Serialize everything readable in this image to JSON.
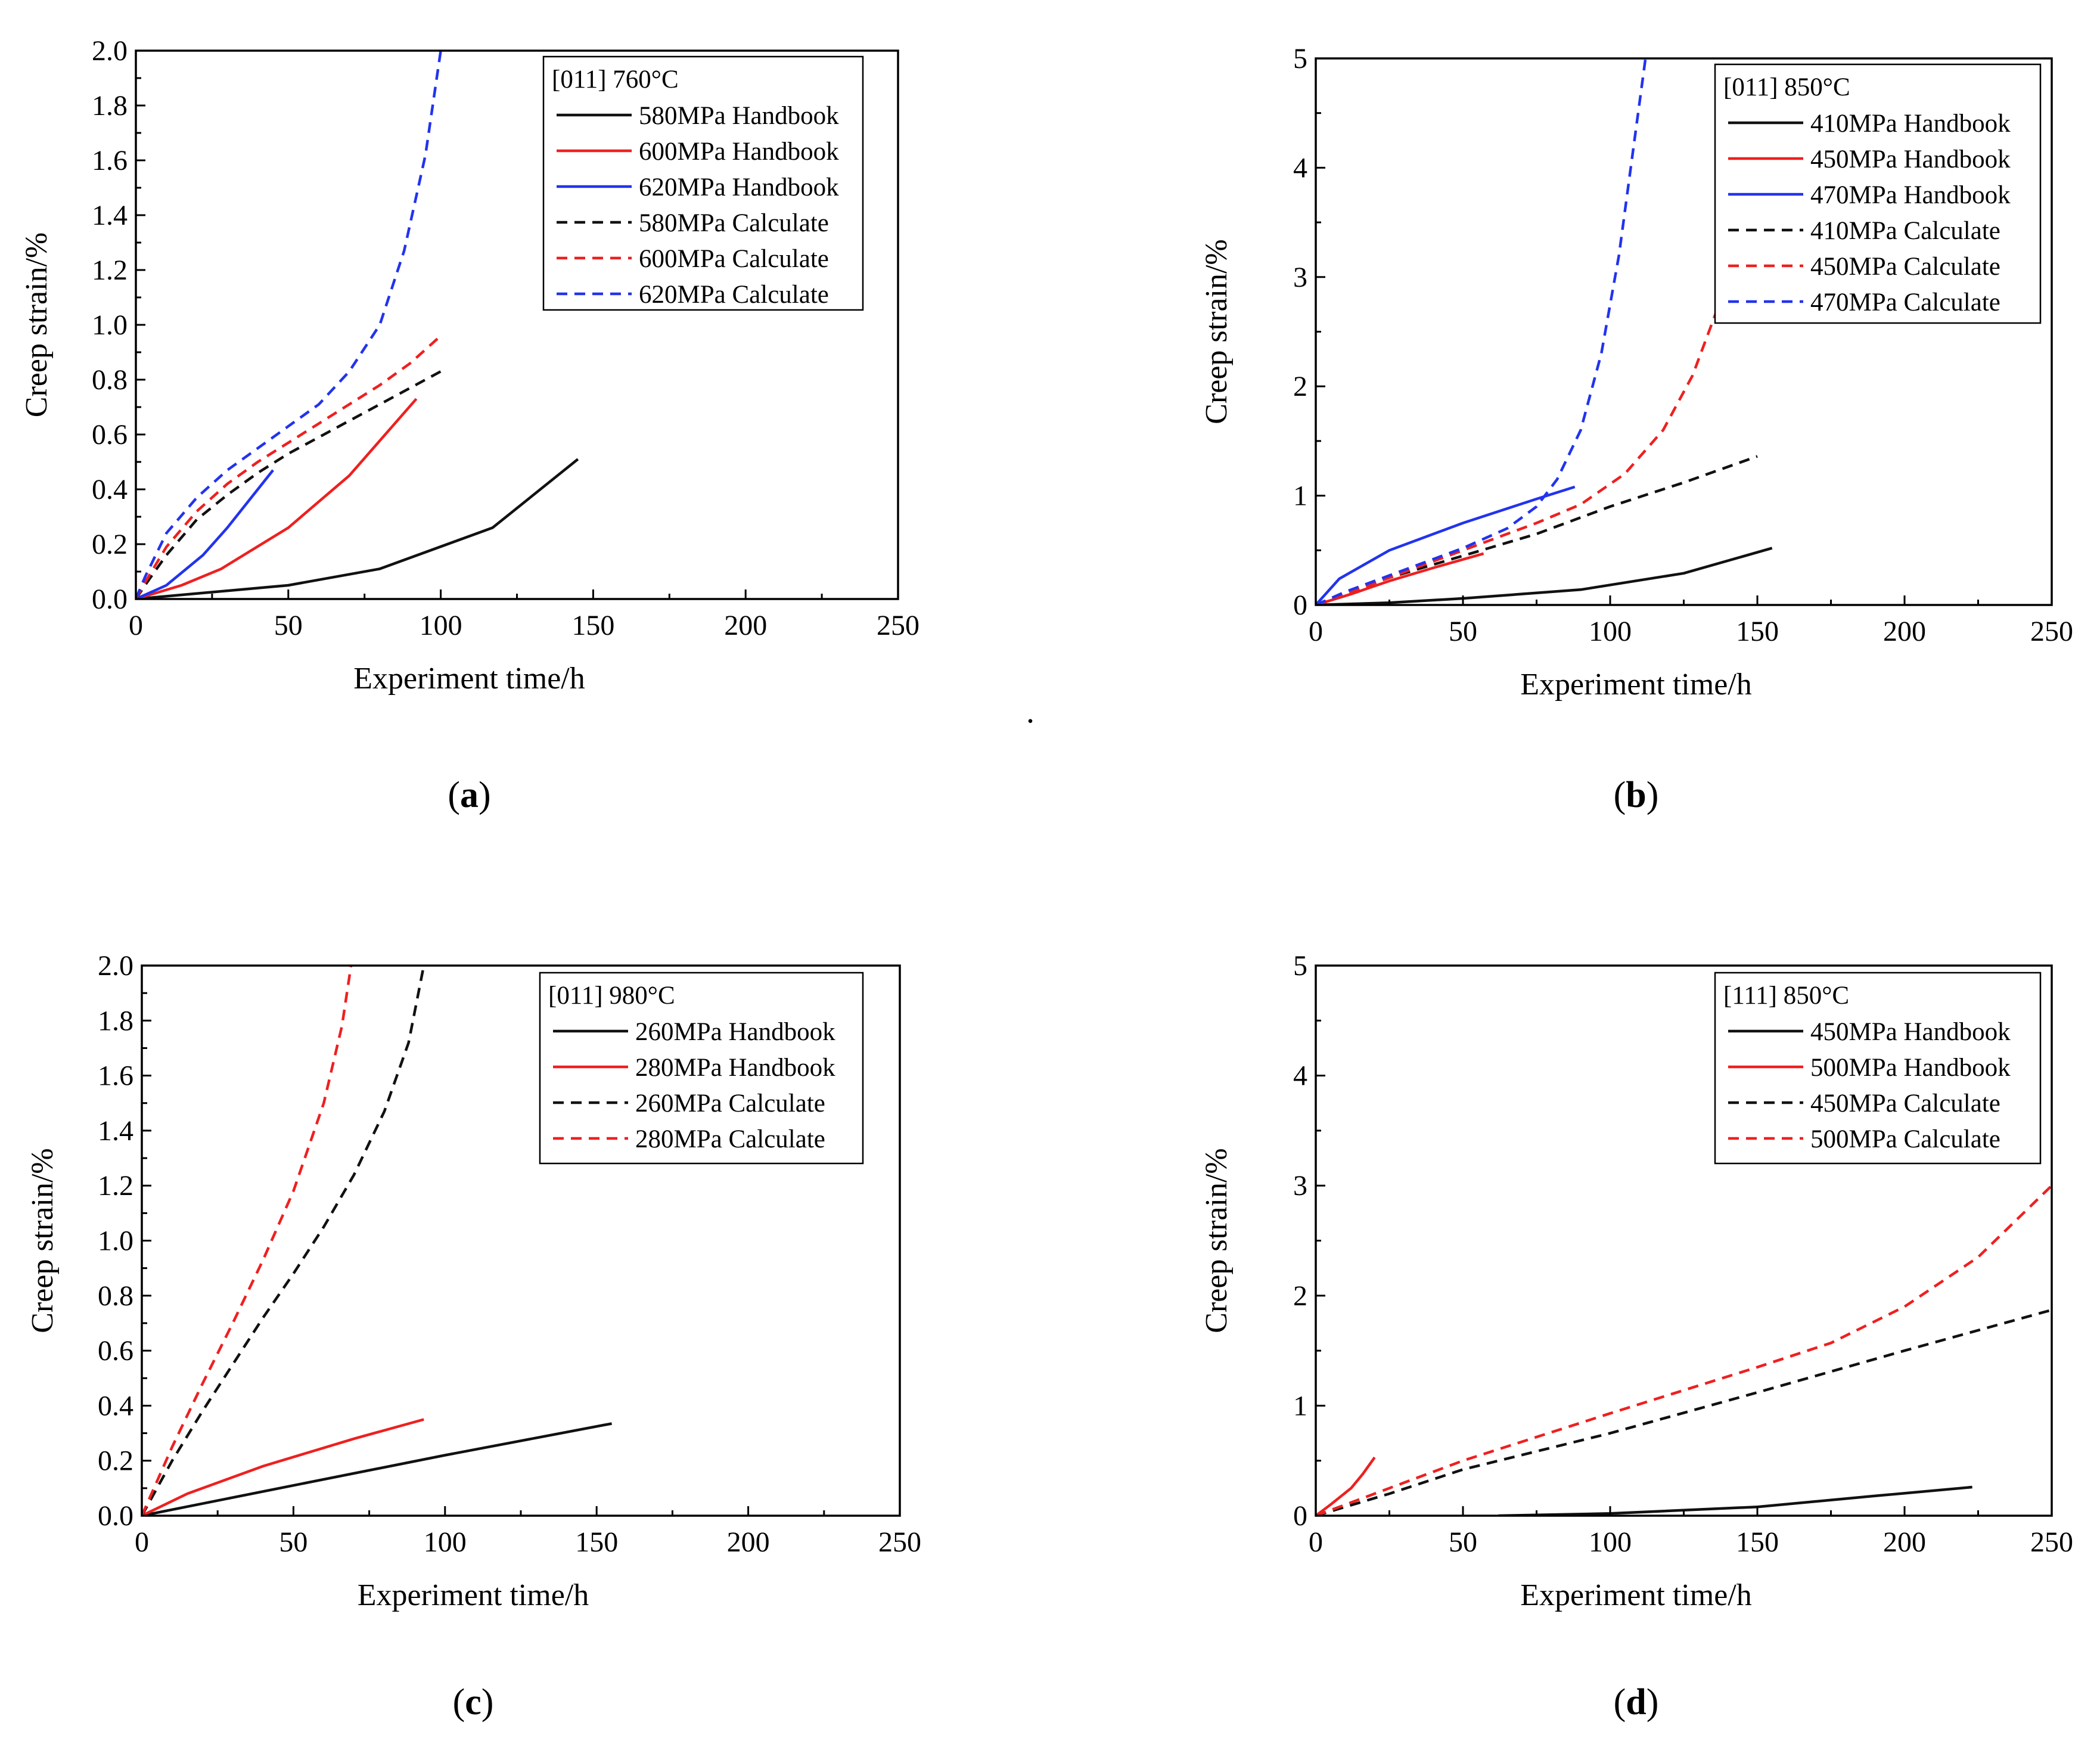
{
  "colors": {
    "black": "#111111",
    "red": "#ee2020",
    "blue": "#2233ee"
  },
  "stray_mark": ".",
  "chart_data": [
    {
      "type": "line",
      "caption": "a",
      "legend_title": "[011] 760°C",
      "xlabel": "Experiment time/h",
      "ylabel": "Creep strain/%",
      "xlim": [
        0,
        250
      ],
      "ylim": [
        0,
        2.0
      ],
      "xticks": [
        0,
        50,
        100,
        150,
        200,
        250
      ],
      "yticks": [
        0.0,
        0.2,
        0.4,
        0.6,
        0.8,
        1.0,
        1.2,
        1.4,
        1.6,
        1.8,
        2.0
      ],
      "ytick_labels": [
        "0.0",
        "0.2",
        "0.4",
        "0.6",
        "0.8",
        "1.0",
        "1.2",
        "1.4",
        "1.6",
        "1.8",
        "2.0"
      ],
      "series": [
        {
          "name": "580MPa Handbook",
          "color": "black",
          "dash": false,
          "points": [
            [
              0,
              0
            ],
            [
              20,
              0.02
            ],
            [
              50,
              0.05
            ],
            [
              80,
              0.11
            ],
            [
              117,
              0.26
            ],
            [
              145,
              0.51
            ]
          ]
        },
        {
          "name": "600MPa Handbook",
          "color": "red",
          "dash": false,
          "points": [
            [
              0,
              0
            ],
            [
              15,
              0.05
            ],
            [
              28,
              0.11
            ],
            [
              50,
              0.26
            ],
            [
              70,
              0.45
            ],
            [
              92,
              0.73
            ]
          ]
        },
        {
          "name": "620MPa Handbook",
          "color": "blue",
          "dash": false,
          "points": [
            [
              0,
              0
            ],
            [
              10,
              0.05
            ],
            [
              22,
              0.16
            ],
            [
              30,
              0.26
            ],
            [
              45,
              0.47
            ]
          ]
        },
        {
          "name": "580MPa Calculate",
          "color": "black",
          "dash": true,
          "points": [
            [
              0,
              0
            ],
            [
              3,
              0.05
            ],
            [
              10,
              0.16
            ],
            [
              20,
              0.29
            ],
            [
              30,
              0.38
            ],
            [
              40,
              0.46
            ],
            [
              50,
              0.53
            ],
            [
              60,
              0.59
            ],
            [
              70,
              0.65
            ],
            [
              80,
              0.71
            ],
            [
              90,
              0.77
            ],
            [
              100,
              0.83
            ]
          ]
        },
        {
          "name": "600MPa Calculate",
          "color": "red",
          "dash": true,
          "points": [
            [
              0,
              0
            ],
            [
              3,
              0.06
            ],
            [
              10,
              0.19
            ],
            [
              20,
              0.32
            ],
            [
              30,
              0.42
            ],
            [
              40,
              0.5
            ],
            [
              50,
              0.57
            ],
            [
              60,
              0.64
            ],
            [
              70,
              0.71
            ],
            [
              80,
              0.78
            ],
            [
              90,
              0.86
            ],
            [
              100,
              0.96
            ]
          ]
        },
        {
          "name": "620MPa Calculate",
          "color": "blue",
          "dash": true,
          "points": [
            [
              0,
              0
            ],
            [
              3,
              0.08
            ],
            [
              10,
              0.24
            ],
            [
              20,
              0.37
            ],
            [
              30,
              0.47
            ],
            [
              40,
              0.55
            ],
            [
              50,
              0.63
            ],
            [
              60,
              0.71
            ],
            [
              70,
              0.83
            ],
            [
              80,
              1.0
            ],
            [
              88,
              1.27
            ],
            [
              95,
              1.62
            ],
            [
              100,
              2.0
            ]
          ]
        }
      ]
    },
    {
      "type": "line",
      "caption": "b",
      "legend_title": "[011] 850°C",
      "xlabel": "Experiment time/h",
      "ylabel": "Creep strain/%",
      "xlim": [
        0,
        250
      ],
      "ylim": [
        0,
        5
      ],
      "xticks": [
        0,
        50,
        100,
        150,
        200,
        250
      ],
      "yticks": [
        0,
        1,
        2,
        3,
        4,
        5
      ],
      "ytick_labels": [
        "0",
        "1",
        "2",
        "3",
        "4",
        "5"
      ],
      "series": [
        {
          "name": "410MPa Handbook",
          "color": "black",
          "dash": false,
          "points": [
            [
              0,
              0
            ],
            [
              25,
              0.02
            ],
            [
              50,
              0.06
            ],
            [
              90,
              0.14
            ],
            [
              125,
              0.29
            ],
            [
              155,
              0.52
            ]
          ]
        },
        {
          "name": "450MPa Handbook",
          "color": "red",
          "dash": false,
          "points": [
            [
              0,
              0
            ],
            [
              12,
              0.1
            ],
            [
              25,
              0.22
            ],
            [
              40,
              0.34
            ],
            [
              57,
              0.47
            ]
          ]
        },
        {
          "name": "470MPa Handbook",
          "color": "blue",
          "dash": false,
          "points": [
            [
              0,
              0
            ],
            [
              8,
              0.24
            ],
            [
              25,
              0.5
            ],
            [
              50,
              0.75
            ],
            [
              75,
              0.97
            ],
            [
              88,
              1.08
            ]
          ]
        },
        {
          "name": "410MPa Calculate",
          "color": "black",
          "dash": true,
          "points": [
            [
              0,
              0
            ],
            [
              10,
              0.1
            ],
            [
              25,
              0.25
            ],
            [
              50,
              0.45
            ],
            [
              75,
              0.65
            ],
            [
              100,
              0.9
            ],
            [
              125,
              1.12
            ],
            [
              150,
              1.36
            ]
          ]
        },
        {
          "name": "450MPa Calculate",
          "color": "red",
          "dash": true,
          "points": [
            [
              0,
              0
            ],
            [
              10,
              0.1
            ],
            [
              25,
              0.25
            ],
            [
              50,
              0.5
            ],
            [
              75,
              0.75
            ],
            [
              90,
              0.92
            ],
            [
              105,
              1.2
            ],
            [
              118,
              1.6
            ],
            [
              128,
              2.1
            ],
            [
              137,
              2.75
            ]
          ]
        },
        {
          "name": "470MPa Calculate",
          "color": "blue",
          "dash": true,
          "points": [
            [
              0,
              0
            ],
            [
              10,
              0.12
            ],
            [
              25,
              0.27
            ],
            [
              50,
              0.52
            ],
            [
              65,
              0.7
            ],
            [
              75,
              0.9
            ],
            [
              82,
              1.15
            ],
            [
              90,
              1.6
            ],
            [
              97,
              2.3
            ],
            [
              103,
              3.2
            ],
            [
              108,
              4.2
            ],
            [
              112,
              5.0
            ]
          ]
        }
      ]
    },
    {
      "type": "line",
      "caption": "c",
      "legend_title": "[011] 980°C",
      "xlabel": "Experiment time/h",
      "ylabel": "Creep strain/%",
      "xlim": [
        0,
        250
      ],
      "ylim": [
        0,
        2.0
      ],
      "xticks": [
        0,
        50,
        100,
        150,
        200,
        250
      ],
      "yticks": [
        0.0,
        0.2,
        0.4,
        0.6,
        0.8,
        1.0,
        1.2,
        1.4,
        1.6,
        1.8,
        2.0
      ],
      "ytick_labels": [
        "0.0",
        "0.2",
        "0.4",
        "0.6",
        "0.8",
        "1.0",
        "1.2",
        "1.4",
        "1.6",
        "1.8",
        "2.0"
      ],
      "series": [
        {
          "name": "260MPa Handbook",
          "color": "black",
          "dash": false,
          "points": [
            [
              0,
              0
            ],
            [
              50,
              0.11
            ],
            [
              100,
              0.22
            ],
            [
              155,
              0.335
            ]
          ]
        },
        {
          "name": "280MPa Handbook",
          "color": "red",
          "dash": false,
          "points": [
            [
              0,
              0
            ],
            [
              15,
              0.08
            ],
            [
              40,
              0.18
            ],
            [
              70,
              0.28
            ],
            [
              93,
              0.35
            ]
          ]
        },
        {
          "name": "260MPa Calculate",
          "color": "black",
          "dash": true,
          "points": [
            [
              0,
              0
            ],
            [
              10,
              0.2
            ],
            [
              20,
              0.38
            ],
            [
              30,
              0.55
            ],
            [
              40,
              0.72
            ],
            [
              50,
              0.88
            ],
            [
              60,
              1.05
            ],
            [
              70,
              1.24
            ],
            [
              80,
              1.47
            ],
            [
              88,
              1.72
            ],
            [
              93,
              2.0
            ]
          ]
        },
        {
          "name": "280MPa Calculate",
          "color": "red",
          "dash": true,
          "points": [
            [
              0,
              0
            ],
            [
              10,
              0.25
            ],
            [
              20,
              0.48
            ],
            [
              30,
              0.7
            ],
            [
              40,
              0.93
            ],
            [
              50,
              1.18
            ],
            [
              60,
              1.5
            ],
            [
              66,
              1.78
            ],
            [
              69,
              2.0
            ]
          ]
        }
      ]
    },
    {
      "type": "line",
      "caption": "d",
      "legend_title": "[111] 850°C",
      "xlabel": "Experiment time/h",
      "ylabel": "Creep strain/%",
      "xlim": [
        0,
        250
      ],
      "ylim": [
        0,
        5
      ],
      "xticks": [
        0,
        50,
        100,
        150,
        200,
        250
      ],
      "yticks": [
        0,
        1,
        2,
        3,
        4,
        5
      ],
      "ytick_labels": [
        "0",
        "1",
        "2",
        "3",
        "4",
        "5"
      ],
      "series": [
        {
          "name": "450MPa Handbook",
          "color": "black",
          "dash": false,
          "points": [
            [
              62,
              0
            ],
            [
              100,
              0.02
            ],
            [
              150,
              0.08
            ],
            [
              190,
              0.18
            ],
            [
              223,
              0.26
            ]
          ]
        },
        {
          "name": "500MPa Handbook",
          "color": "red",
          "dash": false,
          "points": [
            [
              0,
              0
            ],
            [
              5,
              0.1
            ],
            [
              12,
              0.25
            ],
            [
              16,
              0.38
            ],
            [
              20,
              0.53
            ]
          ]
        },
        {
          "name": "450MPa Calculate",
          "color": "black",
          "dash": true,
          "points": [
            [
              0,
              0
            ],
            [
              25,
              0.2
            ],
            [
              50,
              0.42
            ],
            [
              100,
              0.75
            ],
            [
              150,
              1.12
            ],
            [
              200,
              1.5
            ],
            [
              250,
              1.87
            ]
          ]
        },
        {
          "name": "500MPa Calculate",
          "color": "red",
          "dash": true,
          "points": [
            [
              0,
              0
            ],
            [
              25,
              0.25
            ],
            [
              50,
              0.5
            ],
            [
              100,
              0.93
            ],
            [
              150,
              1.35
            ],
            [
              175,
              1.57
            ],
            [
              200,
              1.9
            ],
            [
              225,
              2.35
            ],
            [
              250,
              3.0
            ]
          ]
        }
      ]
    }
  ]
}
